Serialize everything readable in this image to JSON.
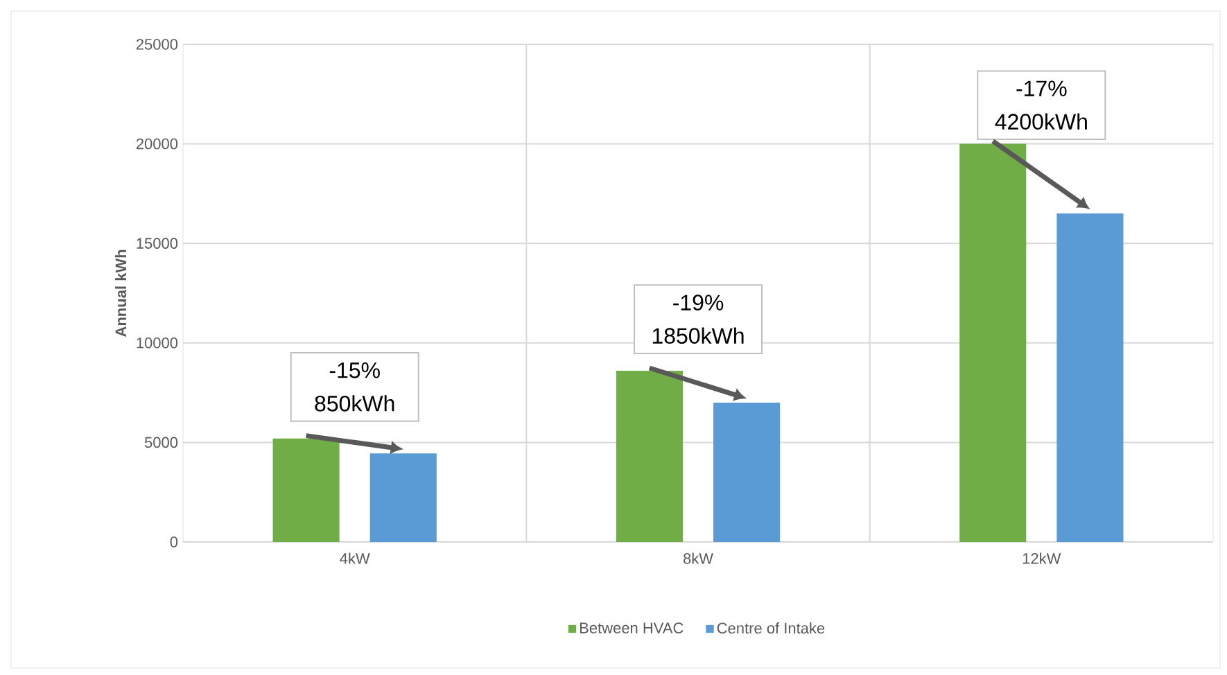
{
  "chart_data": {
    "type": "bar",
    "ylabel": "Annual kWh",
    "categories": [
      "4kW",
      "8kW",
      "12kW"
    ],
    "series": [
      {
        "name": "Between HVAC",
        "color": "#70ad47",
        "values": [
          5200,
          8600,
          20000
        ]
      },
      {
        "name": "Centre of Intake",
        "color": "#5b9bd5",
        "values": [
          4450,
          7000,
          16500
        ]
      }
    ],
    "ylim": [
      0,
      25000
    ],
    "yticks": [
      0,
      5000,
      10000,
      15000,
      20000,
      25000
    ],
    "grid": true,
    "legend": "bottom",
    "annotations": [
      "-15% 850kWh",
      "-19% 1850kWh",
      "-17% 4200kWh"
    ]
  }
}
